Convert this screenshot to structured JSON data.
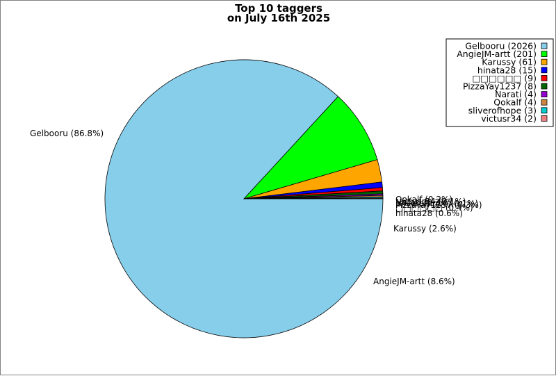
{
  "chart_data": {
    "type": "pie",
    "title": "Top 10 taggers",
    "subtitle": "on July 16th 2025",
    "legend_position": "top-right",
    "slices": [
      {
        "name": "Gelbooru",
        "value": 2026,
        "legend": "Gelbooru (2026)",
        "label": "Gelbooru (86.8%)",
        "color": "#87ceeb"
      },
      {
        "name": "AngieJM-artt",
        "value": 201,
        "legend": "AngieJM-artt (201)",
        "label": "AngieJM-artt (8.6%)",
        "color": "#00ff00"
      },
      {
        "name": "Karussy",
        "value": 61,
        "legend": "Karussy (61)",
        "label": "Karussy (2.6%)",
        "color": "#ffa500"
      },
      {
        "name": "hinata28",
        "value": 15,
        "legend": "hinata28 (15)",
        "label": "hinata28 (0.6%)",
        "color": "#0000ff"
      },
      {
        "name": "□□□□□□",
        "value": 9,
        "legend": "□□□□□□ (9)",
        "label": "□□□□□□ (0.4%)",
        "color": "#ff0000"
      },
      {
        "name": "PizzaYay1237",
        "value": 8,
        "legend": "PizzaYay1237 (8)",
        "label": "PizzaYay1237 (0.3%)",
        "color": "#006400"
      },
      {
        "name": "Narati",
        "value": 4,
        "legend": "Narati (4)",
        "label": "Narati (0.2%)",
        "color": "#9400d3"
      },
      {
        "name": "Qokalf",
        "value": 4,
        "legend": "Qokalf (4)",
        "label": "Qokalf (0.2%)",
        "color": "#cd853f"
      },
      {
        "name": "sliverofhope",
        "value": 3,
        "legend": "sliverofhope (3)",
        "label": "sliverofhope (0.1%)",
        "color": "#00ced1"
      },
      {
        "name": "victusr34",
        "value": 2,
        "legend": "victusr34 (2)",
        "label": "victusr34 (0.1%)",
        "color": "#f08080"
      }
    ]
  }
}
